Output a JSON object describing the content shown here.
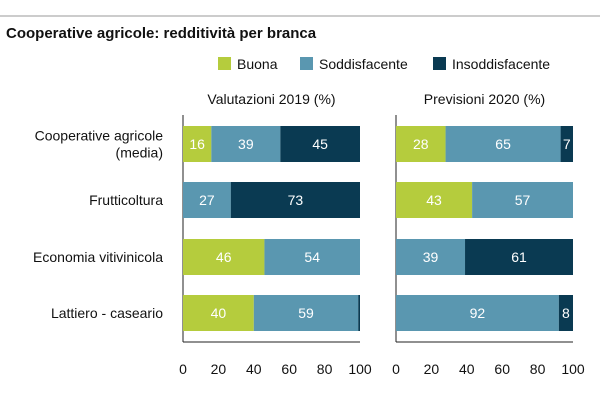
{
  "chart_data": {
    "type": "bar",
    "orientation": "horizontal",
    "stacked": true,
    "title": "Cooperative agricole: redditività per branca",
    "categories": [
      "Cooperative agricole (media)",
      "Frutticoltura",
      "Economia vitivinicola",
      "Lattiero - caseario"
    ],
    "legend": {
      "placement": "top-right",
      "entries": [
        "Buona",
        "Soddisfacente",
        "Insoddisfacente"
      ]
    },
    "colors": {
      "Buona": "#b5cc3d",
      "Soddisfacente": "#5a97b0",
      "Insoddisfacente": "#0a3a52"
    },
    "xticks": [
      "0",
      "20",
      "40",
      "60",
      "80",
      "100"
    ],
    "xlim": [
      0,
      100
    ],
    "panels": [
      {
        "title": "Valutazioni 2019 (%)",
        "series": [
          {
            "name": "Buona",
            "values": [
              16,
              0,
              46,
              40
            ]
          },
          {
            "name": "Soddisfacente",
            "values": [
              39,
              27,
              54,
              59
            ]
          },
          {
            "name": "Insoddisfacente",
            "values": [
              45,
              73,
              0,
              1
            ]
          }
        ],
        "labels": [
          [
            "16",
            "39",
            "45"
          ],
          [
            "",
            "27",
            "73"
          ],
          [
            "46",
            "54",
            ""
          ],
          [
            "40",
            "59",
            ""
          ]
        ]
      },
      {
        "title": "Previsioni 2020 (%)",
        "series": [
          {
            "name": "Buona",
            "values": [
              28,
              43,
              0,
              0
            ]
          },
          {
            "name": "Soddisfacente",
            "values": [
              65,
              57,
              39,
              92
            ]
          },
          {
            "name": "Insoddisfacente",
            "values": [
              7,
              0,
              61,
              8
            ]
          }
        ],
        "labels": [
          [
            "28",
            "65",
            "7"
          ],
          [
            "43",
            "57",
            ""
          ],
          [
            "",
            "39",
            "61"
          ],
          [
            "",
            "92",
            "8"
          ]
        ]
      }
    ]
  }
}
